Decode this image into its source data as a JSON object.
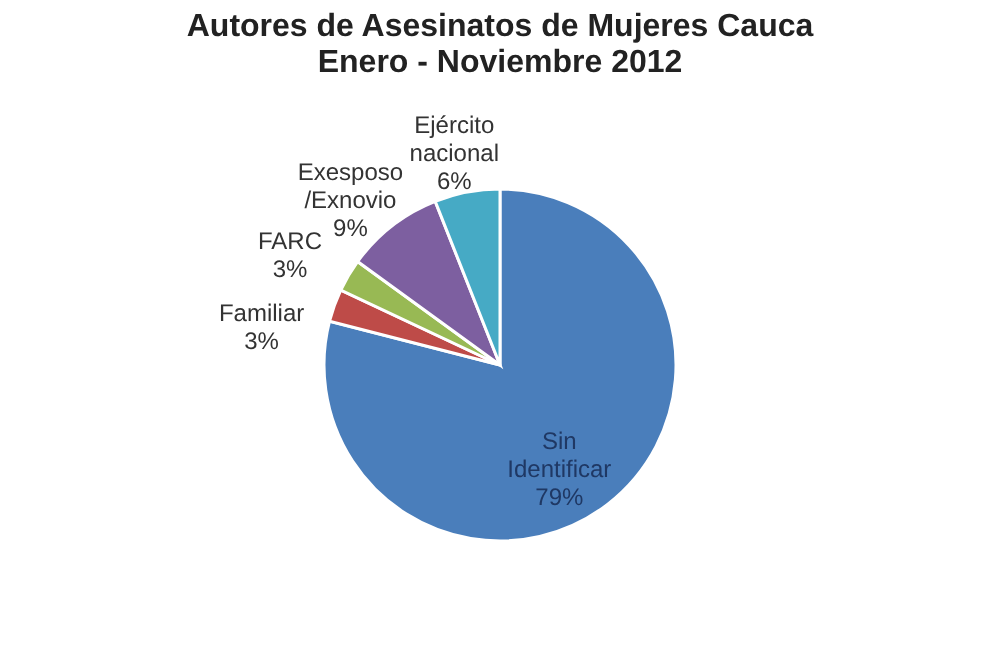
{
  "chart_data": {
    "type": "pie",
    "title": [
      "Autores de Asesinatos de Mujeres Cauca",
      "Enero - Noviembre 2012"
    ],
    "categories": [
      "Sin Identificar",
      "Familiar",
      "FARC",
      "Exesposo /Exnovio",
      "Ejército nacional"
    ],
    "values": [
      79,
      3,
      3,
      9,
      6
    ],
    "value_labels": [
      "79%",
      "3%",
      "3%",
      "9%",
      "6%"
    ],
    "colors": [
      "#4a7ebb",
      "#be4b48",
      "#98b954",
      "#7d5fa0",
      "#46aac5"
    ]
  }
}
